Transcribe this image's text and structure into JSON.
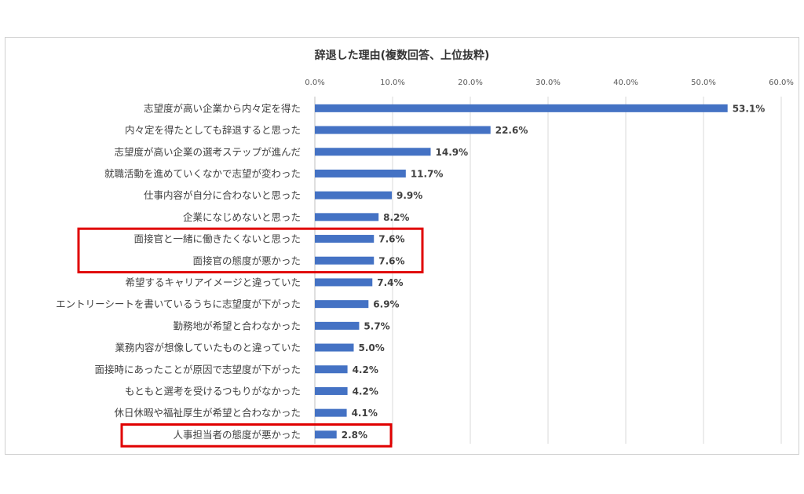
{
  "chart_data": {
    "type": "bar",
    "orientation": "horizontal",
    "title": "辞退した理由(複数回答、上位抜粋)",
    "xlim": [
      0,
      60
    ],
    "tick_labels": [
      "0.0%",
      "10.0%",
      "20.0%",
      "30.0%",
      "40.0%",
      "50.0%",
      "60.0%"
    ],
    "ticks": [
      0,
      10,
      20,
      30,
      40,
      50,
      60
    ],
    "grid": true,
    "bar_color": "#4472c4",
    "highlight_color": "#e00000",
    "categories": [
      "志望度が高い企業から内々定を得た",
      "内々定を得たとしても辞退すると思った",
      "志望度が高い企業の選考ステップが進んだ",
      "就職活動を進めていくなかで志望が変わった",
      "仕事内容が自分に合わないと思った",
      "企業になじめないと思った",
      "面接官と一緒に働きたくないと思った",
      "面接官の態度が悪かった",
      "希望するキャリアイメージと違っていた",
      "エントリーシートを書いているうちに志望度が下がった",
      "勤務地が希望と合わなかった",
      "業務内容が想像していたものと違っていた",
      "面接時にあったことが原因で志望度が下がった",
      "もともと選考を受けるつもりがなかった",
      "休日休暇や福祉厚生が希望と合わなかった",
      "人事担当者の態度が悪かった"
    ],
    "values": [
      53.1,
      22.6,
      14.9,
      11.7,
      9.9,
      8.2,
      7.6,
      7.6,
      7.4,
      6.9,
      5.7,
      5.0,
      4.2,
      4.2,
      4.1,
      2.8
    ],
    "value_labels": [
      "53.1%",
      "22.6%",
      "14.9%",
      "11.7%",
      "9.9%",
      "8.2%",
      "7.6%",
      "7.6%",
      "7.4%",
      "6.9%",
      "5.7%",
      "5.0%",
      "4.2%",
      "4.2%",
      "4.1%",
      "2.8%"
    ],
    "highlighted_groups": [
      [
        6,
        7
      ],
      [
        15
      ]
    ]
  }
}
